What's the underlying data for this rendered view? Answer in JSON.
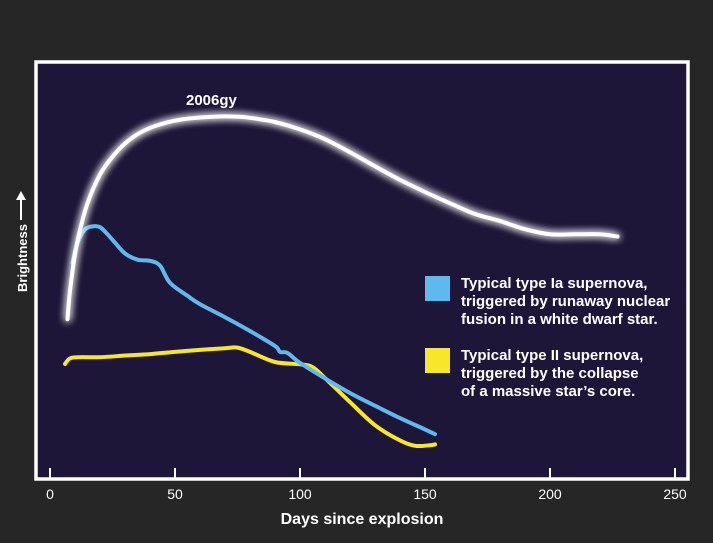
{
  "chart_data": {
    "type": "line",
    "xlabel": "Days since explosion",
    "ylabel": "Brightness",
    "xlim": [
      0,
      250
    ],
    "xticks": [
      0,
      50,
      100,
      150,
      200,
      250
    ],
    "grid": false,
    "legend_position": "right",
    "annotations": [
      {
        "text": "2006gy",
        "series": "2006gy"
      }
    ],
    "series": [
      {
        "name": "2006gy",
        "color": "#ffffff",
        "x": [
          7,
          8,
          10,
          12,
          15,
          20,
          25,
          30,
          35,
          40,
          45,
          50,
          55,
          60,
          65,
          70,
          75,
          80,
          90,
          100,
          110,
          120,
          130,
          140,
          150,
          160,
          170,
          180,
          190,
          200,
          210,
          220,
          227
        ],
        "y": [
          1.59,
          2.6,
          3.9,
          4.75,
          5.7,
          6.72,
          7.35,
          7.82,
          8.15,
          8.37,
          8.52,
          8.63,
          8.7,
          8.74,
          8.77,
          8.78,
          8.77,
          8.73,
          8.58,
          8.32,
          7.97,
          7.51,
          7.01,
          6.53,
          6.1,
          5.7,
          5.32,
          5.07,
          4.78,
          4.6,
          4.6,
          4.6,
          4.52
        ]
      },
      {
        "name": "Typical type Ia supernova, triggered by runaway nuclear fusion in a white dwarf star.",
        "color": "#5fb8ee",
        "x": [
          9,
          11,
          14,
          17,
          20,
          23,
          26,
          30,
          35,
          40,
          44,
          48,
          55,
          60,
          70,
          80,
          90,
          92,
          95,
          100,
          110,
          120,
          130,
          140,
          150,
          154
        ],
        "y": [
          3.59,
          4.3,
          4.77,
          4.88,
          4.85,
          4.6,
          4.3,
          3.92,
          3.7,
          3.66,
          3.49,
          2.88,
          2.42,
          2.12,
          1.66,
          1.17,
          0.64,
          0.43,
          0.39,
          0.04,
          -0.51,
          -1.03,
          -1.48,
          -1.92,
          -2.32,
          -2.49
        ]
      },
      {
        "name": "Typical type II supernova, triggered by the collapse of a massive star’s core.",
        "color": "#f7e62a",
        "x": [
          6,
          8,
          12,
          20,
          30,
          40,
          50,
          60,
          70,
          75,
          80,
          90,
          100,
          105,
          110,
          120,
          130,
          140,
          146,
          152,
          154
        ],
        "y": [
          0,
          0.2,
          0.24,
          0.24,
          0.3,
          0.35,
          0.43,
          0.5,
          0.56,
          0.58,
          0.43,
          0.07,
          -0.01,
          -0.11,
          -0.5,
          -1.35,
          -2.17,
          -2.71,
          -2.9,
          -2.88,
          -2.85
        ]
      }
    ],
    "ylim": [
      -5,
      10
    ]
  },
  "legend": {
    "items": [
      {
        "lines": [
          "Typical type Ia supernova,",
          "triggered by runaway nuclear",
          "fusion in a white dwarf star."
        ],
        "color": "#5fb8ee"
      },
      {
        "lines": [
          "Typical type II supernova,",
          "triggered by the collapse",
          "of a massive star’s core."
        ],
        "color": "#f7e62a"
      }
    ]
  },
  "colors": {
    "background": "#262626",
    "plot_background": "#1e1638",
    "frame": "#ffffff"
  }
}
